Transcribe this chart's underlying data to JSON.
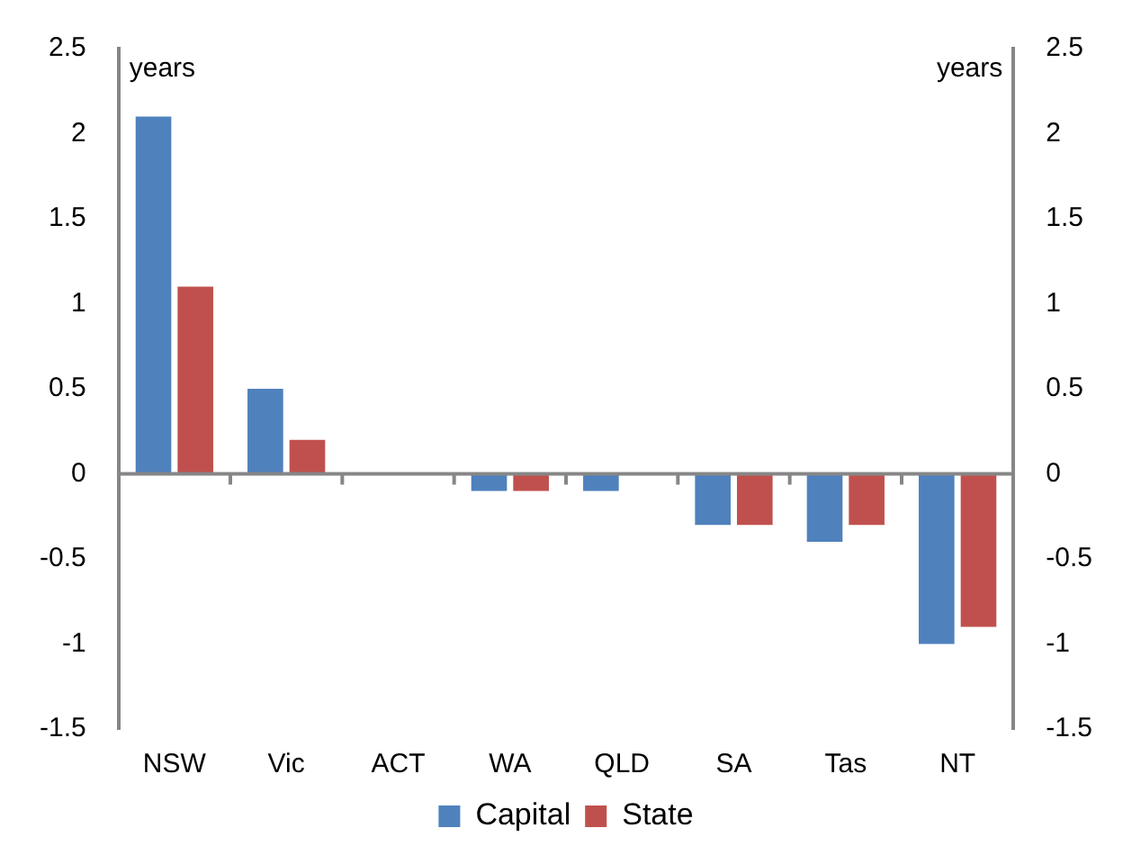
{
  "chart_data": {
    "type": "bar",
    "ylabel": "years",
    "y2label": "years",
    "categories": [
      "NSW",
      "Vic",
      "ACT",
      "WA",
      "QLD",
      "SA",
      "Tas",
      "NT"
    ],
    "series": [
      {
        "name": "Capital",
        "color": "#4f81bd",
        "values": [
          2.1,
          0.5,
          0,
          -0.1,
          -0.1,
          -0.3,
          -0.4,
          -1.0
        ]
      },
      {
        "name": "State",
        "color": "#c0504d",
        "values": [
          1.1,
          0.2,
          0,
          -0.1,
          0,
          -0.3,
          -0.3,
          -0.9
        ]
      }
    ],
    "ylim": [
      -1.5,
      2.5
    ],
    "yticks": [
      -1.5,
      -1,
      -0.5,
      0,
      0.5,
      1,
      1.5,
      2,
      2.5
    ],
    "y2lim": [
      -1.5,
      2.5
    ],
    "y2ticks": [
      -1.5,
      -1,
      -0.5,
      0,
      0.5,
      1,
      1.5,
      2,
      2.5
    ],
    "legend": "bottom"
  }
}
